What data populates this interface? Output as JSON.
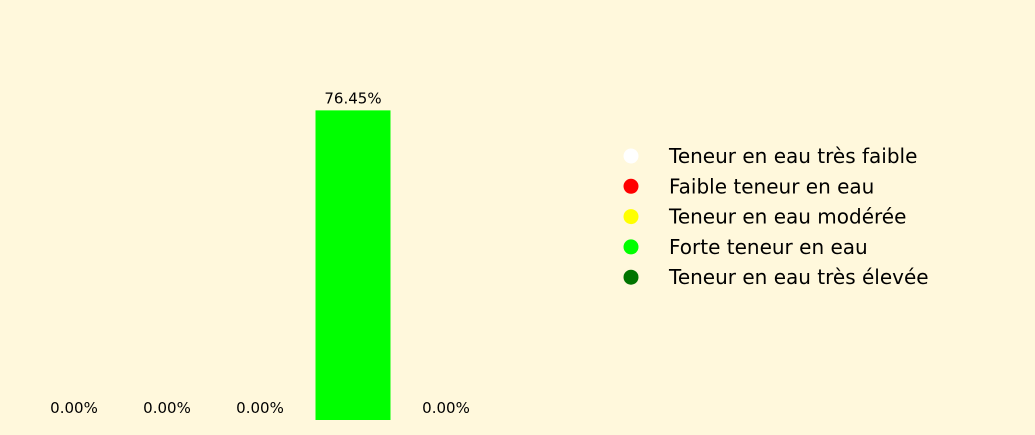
{
  "chart_data": {
    "type": "bar",
    "categories": [
      "Teneur en eau très faible",
      "Faible teneur en eau",
      "Teneur en eau modérée",
      "Forte teneur en eau",
      "Teneur en eau très élevée"
    ],
    "values": [
      0.0,
      0.0,
      0.0,
      76.45,
      0.0
    ],
    "data_labels": [
      "0.00%",
      "0.00%",
      "0.00%",
      "76.45%",
      "0.00%"
    ],
    "colors": [
      "#ffffff",
      "#ff0000",
      "#ffff00",
      "#00ff00",
      "#007400"
    ],
    "ylim": [
      0,
      100
    ],
    "grid": false,
    "axes_visible": false,
    "legend": {
      "placement": "right",
      "entries": [
        {
          "label": "Teneur en eau très faible",
          "color": "#ffffff"
        },
        {
          "label": "Faible teneur en eau",
          "color": "#ff0000"
        },
        {
          "label": "Teneur en eau modérée",
          "color": "#ffff00"
        },
        {
          "label": "Forte teneur en eau",
          "color": "#00ff00"
        },
        {
          "label": "Teneur en eau très élevée",
          "color": "#007400"
        }
      ]
    }
  },
  "background_color": "#fff8dc"
}
